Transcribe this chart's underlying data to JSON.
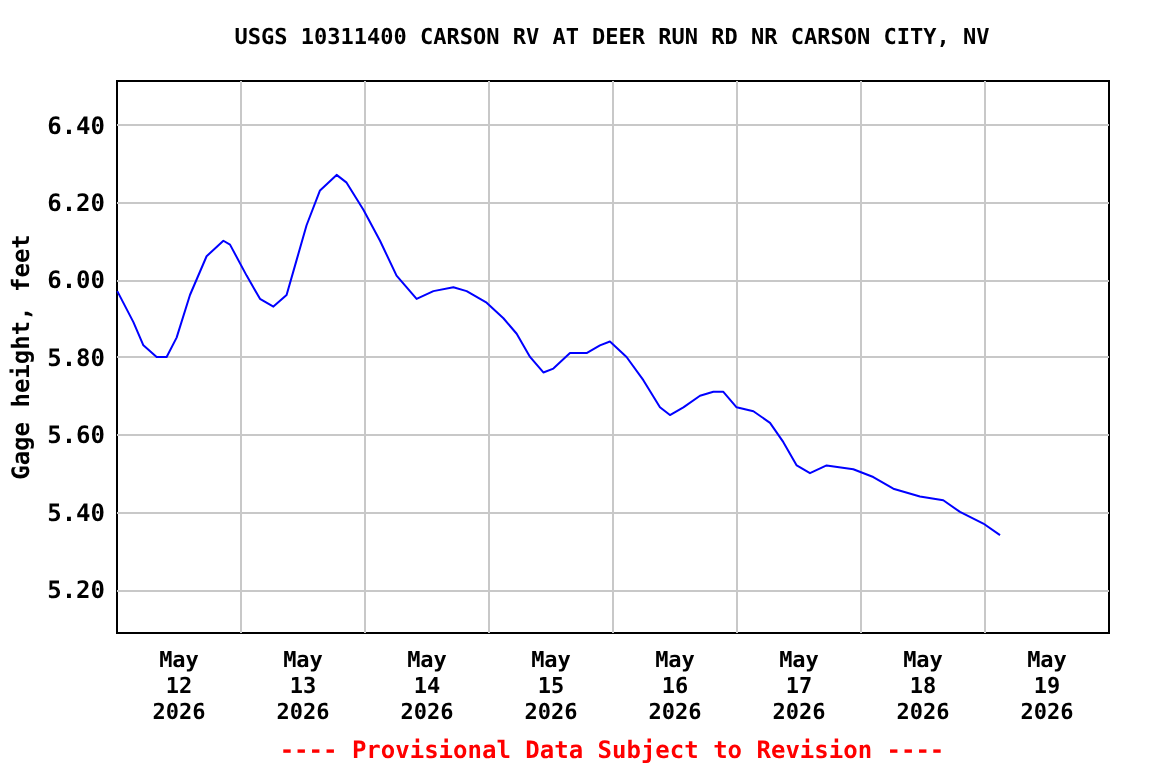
{
  "chart_data": {
    "type": "line",
    "title": "USGS 10311400 CARSON RV AT DEER RUN RD NR CARSON CITY, NV",
    "ylabel": "Gage height, feet",
    "annotations": [
      "---- Provisional Data Subject to Revision ----"
    ],
    "x": [
      "2026-05-12T00:15",
      "2026-05-12T03:22",
      "2026-05-12T05:18",
      "2026-05-12T07:52",
      "2026-05-12T09:48",
      "2026-05-12T11:44",
      "2026-05-12T14:19",
      "2026-05-12T17:32",
      "2026-05-12T20:47",
      "2026-05-12T22:04",
      "2026-05-13T01:17",
      "2026-05-13T03:52",
      "2026-05-13T06:28",
      "2026-05-13T09:01",
      "2026-05-13T10:57",
      "2026-05-13T12:53",
      "2026-05-13T15:29",
      "2026-05-13T18:42",
      "2026-05-13T20:38",
      "2026-05-13T23:53",
      "2026-05-14T03:06",
      "2026-05-14T06:18",
      "2026-05-14T10:11",
      "2026-05-14T13:26",
      "2026-05-14T17:18",
      "2026-05-14T19:52",
      "2026-05-14T23:44",
      "2026-05-15T02:59",
      "2026-05-15T05:33",
      "2026-05-15T08:08",
      "2026-05-15T10:43",
      "2026-05-15T12:39",
      "2026-05-15T15:52",
      "2026-05-15T19:05",
      "2026-05-15T21:40",
      "2026-05-15T23:36",
      "2026-05-16T02:49",
      "2026-05-16T06:04",
      "2026-05-16T09:17",
      "2026-05-16T11:13",
      "2026-05-16T13:49",
      "2026-05-16T17:02",
      "2026-05-16T19:37",
      "2026-05-16T21:33",
      "2026-05-17T00:07",
      "2026-05-17T03:22",
      "2026-05-17T06:35",
      "2026-05-17T09:10",
      "2026-05-17T11:45",
      "2026-05-17T14:19",
      "2026-05-17T17:32",
      "2026-05-17T22:42",
      "2026-05-18T02:34",
      "2026-05-18T06:27",
      "2026-05-18T11:36",
      "2026-05-18T16:07",
      "2026-05-18T19:21",
      "2026-05-18T23:52",
      "2026-05-19T03:06"
    ],
    "series": [
      {
        "color": "#0000ff",
        "values": [
          5.97,
          5.89,
          5.83,
          5.8,
          5.8,
          5.85,
          5.96,
          6.06,
          6.1,
          6.09,
          6.01,
          5.95,
          5.93,
          5.96,
          6.05,
          6.14,
          6.23,
          6.27,
          6.25,
          6.18,
          6.1,
          6.01,
          5.95,
          5.97,
          5.98,
          5.97,
          5.94,
          5.9,
          5.86,
          5.8,
          5.76,
          5.77,
          5.81,
          5.81,
          5.83,
          5.84,
          5.8,
          5.74,
          5.67,
          5.65,
          5.67,
          5.7,
          5.71,
          5.71,
          5.67,
          5.66,
          5.63,
          5.58,
          5.52,
          5.5,
          5.52,
          5.51,
          5.49,
          5.46,
          5.44,
          5.43,
          5.4,
          5.37,
          5.34
        ]
      }
    ],
    "xlim": [
      "2026-05-12T00:00",
      "2026-05-20T00:00"
    ],
    "xticks": [
      {
        "value": "2026-05-12T12:00",
        "label": "May 12 2026"
      },
      {
        "value": "2026-05-13T00:00",
        "label": null
      },
      {
        "value": "2026-05-13T12:00",
        "label": "May 13 2026"
      },
      {
        "value": "2026-05-14T00:00",
        "label": null
      },
      {
        "value": "2026-05-14T12:00",
        "label": "May 14 2026"
      },
      {
        "value": "2026-05-15T00:00",
        "label": null
      },
      {
        "value": "2026-05-15T12:00",
        "label": "May 15 2026"
      },
      {
        "value": "2026-05-16T00:00",
        "label": null
      },
      {
        "value": "2026-05-16T12:00",
        "label": "May 16 2026"
      },
      {
        "value": "2026-05-17T00:00",
        "label": null
      },
      {
        "value": "2026-05-17T12:00",
        "label": "May 17 2026"
      },
      {
        "value": "2026-05-18T00:00",
        "label": null
      },
      {
        "value": "2026-05-18T12:00",
        "label": "May 18 2026"
      },
      {
        "value": "2026-05-19T00:00",
        "label": null
      },
      {
        "value": "2026-05-19T12:00",
        "label": "May 19 2026"
      }
    ],
    "ylim": [
      5.09,
      6.515
    ],
    "yticks": [
      {
        "value": 5.2,
        "label": "5.20"
      },
      {
        "value": 5.4,
        "label": "5.40"
      },
      {
        "value": 5.6,
        "label": "5.60"
      },
      {
        "value": 5.8,
        "label": "5.80"
      },
      {
        "value": 6.0,
        "label": "6.00"
      },
      {
        "value": 6.2,
        "label": "6.20"
      },
      {
        "value": 6.4,
        "label": "6.40"
      }
    ],
    "grid": true,
    "line_style": "solid",
    "marker": "none"
  }
}
